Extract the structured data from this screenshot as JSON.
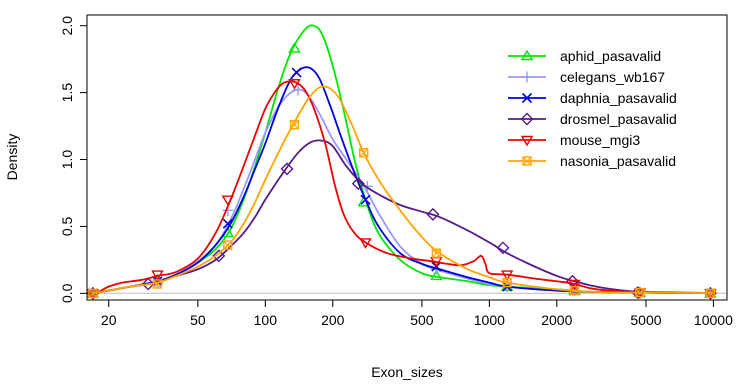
{
  "chart_data": {
    "type": "line",
    "xlabel": "Exon_sizes",
    "ylabel": "Density",
    "xscale": "log",
    "xlim": [
      16,
      11500
    ],
    "ylim": [
      -0.05,
      2.08
    ],
    "x_ticks": [
      20,
      50,
      100,
      200,
      500,
      1000,
      2000,
      5000,
      10000
    ],
    "x_tick_labels": [
      "20",
      "50",
      "100",
      "200",
      "500",
      "1000",
      "2000",
      "5000",
      "10000"
    ],
    "y_ticks": [
      0.0,
      0.5,
      1.0,
      1.5,
      2.0
    ],
    "y_tick_labels": [
      "0.0",
      "0.5",
      "1.0",
      "1.5",
      "2.0"
    ],
    "baseline": 0,
    "baseline_color": "#bebebe",
    "legend_position": "top-right",
    "series": [
      {
        "name": "aphid_pasavalid",
        "color": "#00e600",
        "marker": "triangle-up",
        "curve": [
          [
            17,
            0
          ],
          [
            20,
            0.02
          ],
          [
            25,
            0.05
          ],
          [
            33,
            0.09
          ],
          [
            40,
            0.14
          ],
          [
            50,
            0.23
          ],
          [
            60,
            0.33
          ],
          [
            70,
            0.48
          ],
          [
            80,
            0.7
          ],
          [
            90,
            0.95
          ],
          [
            100,
            1.2
          ],
          [
            115,
            1.55
          ],
          [
            130,
            1.8
          ],
          [
            150,
            1.97
          ],
          [
            165,
            2.0
          ],
          [
            180,
            1.93
          ],
          [
            200,
            1.7
          ],
          [
            225,
            1.35
          ],
          [
            250,
            1.0
          ],
          [
            280,
            0.7
          ],
          [
            320,
            0.45
          ],
          [
            400,
            0.25
          ],
          [
            500,
            0.15
          ],
          [
            600,
            0.12
          ],
          [
            800,
            0.09
          ],
          [
            1000,
            0.06
          ],
          [
            1200,
            0.05
          ],
          [
            2000,
            0.03
          ],
          [
            3000,
            0.01
          ],
          [
            5000,
            0.005
          ],
          [
            10000,
            0.002
          ]
        ],
        "points": [
          [
            17,
            0
          ],
          [
            33,
            0.1
          ],
          [
            68,
            0.45
          ],
          [
            135,
            1.83
          ],
          [
            275,
            0.68
          ],
          [
            580,
            0.13
          ],
          [
            1200,
            0.05
          ],
          [
            2400,
            0.02
          ],
          [
            4700,
            0.005
          ],
          [
            9700,
            0
          ]
        ]
      },
      {
        "name": "celegans_wb167",
        "color": "#9999ff",
        "marker": "plus",
        "curve": [
          [
            17,
            0
          ],
          [
            20,
            0.02
          ],
          [
            25,
            0.05
          ],
          [
            33,
            0.09
          ],
          [
            40,
            0.14
          ],
          [
            50,
            0.24
          ],
          [
            60,
            0.36
          ],
          [
            70,
            0.55
          ],
          [
            80,
            0.78
          ],
          [
            90,
            1.0
          ],
          [
            100,
            1.2
          ],
          [
            115,
            1.4
          ],
          [
            130,
            1.5
          ],
          [
            145,
            1.52
          ],
          [
            160,
            1.45
          ],
          [
            180,
            1.3
          ],
          [
            200,
            1.15
          ],
          [
            230,
            1.0
          ],
          [
            280,
            0.78
          ],
          [
            320,
            0.6
          ],
          [
            400,
            0.35
          ],
          [
            500,
            0.22
          ],
          [
            600,
            0.17
          ],
          [
            800,
            0.11
          ],
          [
            1000,
            0.07
          ],
          [
            1200,
            0.05
          ],
          [
            2000,
            0.02
          ],
          [
            3000,
            0.01
          ],
          [
            5000,
            0.005
          ],
          [
            10000,
            0.002
          ]
        ],
        "points": [
          [
            17,
            0
          ],
          [
            33,
            0.08
          ],
          [
            68,
            0.62
          ],
          [
            140,
            1.52
          ],
          [
            285,
            0.8
          ],
          [
            580,
            0.18
          ],
          [
            1200,
            0.05
          ],
          [
            2400,
            0.02
          ],
          [
            4700,
            0.005
          ],
          [
            9700,
            0
          ]
        ]
      },
      {
        "name": "daphnia_pasavalid",
        "color": "#0000dd",
        "marker": "cross",
        "curve": [
          [
            17,
            0
          ],
          [
            20,
            0.02
          ],
          [
            25,
            0.05
          ],
          [
            33,
            0.09
          ],
          [
            40,
            0.14
          ],
          [
            50,
            0.23
          ],
          [
            60,
            0.36
          ],
          [
            70,
            0.52
          ],
          [
            80,
            0.72
          ],
          [
            90,
            0.93
          ],
          [
            100,
            1.12
          ],
          [
            115,
            1.4
          ],
          [
            130,
            1.6
          ],
          [
            145,
            1.68
          ],
          [
            160,
            1.68
          ],
          [
            175,
            1.6
          ],
          [
            195,
            1.4
          ],
          [
            220,
            1.15
          ],
          [
            250,
            0.9
          ],
          [
            280,
            0.7
          ],
          [
            320,
            0.5
          ],
          [
            400,
            0.3
          ],
          [
            500,
            0.22
          ],
          [
            600,
            0.18
          ],
          [
            800,
            0.12
          ],
          [
            1000,
            0.08
          ],
          [
            1200,
            0.05
          ],
          [
            2000,
            0.02
          ],
          [
            3000,
            0.01
          ],
          [
            5000,
            0.005
          ],
          [
            10000,
            0.002
          ]
        ],
        "points": [
          [
            17,
            0
          ],
          [
            33,
            0.09
          ],
          [
            68,
            0.52
          ],
          [
            138,
            1.65
          ],
          [
            280,
            0.7
          ],
          [
            580,
            0.2
          ],
          [
            1200,
            0.05
          ],
          [
            2400,
            0.02
          ],
          [
            4700,
            0.005
          ],
          [
            9700,
            0
          ]
        ]
      },
      {
        "name": "drosmel_pasavalid",
        "color": "#551a8b",
        "marker": "diamond",
        "curve": [
          [
            17,
            0
          ],
          [
            20,
            0.02
          ],
          [
            25,
            0.05
          ],
          [
            30,
            0.07
          ],
          [
            40,
            0.13
          ],
          [
            50,
            0.18
          ],
          [
            60,
            0.25
          ],
          [
            70,
            0.35
          ],
          [
            80,
            0.45
          ],
          [
            90,
            0.57
          ],
          [
            100,
            0.7
          ],
          [
            120,
            0.9
          ],
          [
            140,
            1.05
          ],
          [
            160,
            1.13
          ],
          [
            180,
            1.14
          ],
          [
            200,
            1.1
          ],
          [
            230,
            0.95
          ],
          [
            270,
            0.82
          ],
          [
            320,
            0.74
          ],
          [
            400,
            0.66
          ],
          [
            500,
            0.61
          ],
          [
            600,
            0.57
          ],
          [
            800,
            0.47
          ],
          [
            1000,
            0.38
          ],
          [
            1200,
            0.3
          ],
          [
            1500,
            0.22
          ],
          [
            2000,
            0.13
          ],
          [
            2400,
            0.09
          ],
          [
            3000,
            0.05
          ],
          [
            4000,
            0.02
          ],
          [
            5000,
            0.01
          ],
          [
            10000,
            0.002
          ]
        ],
        "points": [
          [
            17,
            0
          ],
          [
            30,
            0.07
          ],
          [
            62,
            0.28
          ],
          [
            125,
            0.93
          ],
          [
            260,
            0.82
          ],
          [
            560,
            0.59
          ],
          [
            1150,
            0.34
          ],
          [
            2350,
            0.09
          ],
          [
            4600,
            0.005
          ],
          [
            9700,
            0
          ]
        ]
      },
      {
        "name": "mouse_mgi3",
        "color": "#ee0000",
        "marker": "triangle-down",
        "curve": [
          [
            17,
            0
          ],
          [
            18,
            0.01
          ],
          [
            20,
            0.05
          ],
          [
            23,
            0.08
          ],
          [
            28,
            0.1
          ],
          [
            33,
            0.13
          ],
          [
            40,
            0.16
          ],
          [
            50,
            0.26
          ],
          [
            60,
            0.45
          ],
          [
            70,
            0.7
          ],
          [
            80,
            0.95
          ],
          [
            90,
            1.18
          ],
          [
            100,
            1.38
          ],
          [
            110,
            1.5
          ],
          [
            120,
            1.57
          ],
          [
            135,
            1.58
          ],
          [
            150,
            1.52
          ],
          [
            165,
            1.38
          ],
          [
            185,
            1.12
          ],
          [
            205,
            0.8
          ],
          [
            225,
            0.58
          ],
          [
            250,
            0.45
          ],
          [
            280,
            0.38
          ],
          [
            350,
            0.3
          ],
          [
            450,
            0.26
          ],
          [
            550,
            0.24
          ],
          [
            650,
            0.22
          ],
          [
            750,
            0.21
          ],
          [
            850,
            0.24
          ],
          [
            920,
            0.28
          ],
          [
            960,
            0.22
          ],
          [
            1000,
            0.15
          ],
          [
            1200,
            0.14
          ],
          [
            1600,
            0.11
          ],
          [
            2000,
            0.09
          ],
          [
            2400,
            0.07
          ],
          [
            3000,
            0.03
          ],
          [
            5000,
            0.005
          ],
          [
            10000,
            0.002
          ]
        ],
        "points": [
          [
            17,
            0
          ],
          [
            33,
            0.14
          ],
          [
            68,
            0.7
          ],
          [
            135,
            1.57
          ],
          [
            280,
            0.38
          ],
          [
            580,
            0.24
          ],
          [
            1200,
            0.14
          ],
          [
            2400,
            0.07
          ],
          [
            4700,
            0.005
          ],
          [
            9700,
            0
          ]
        ]
      },
      {
        "name": "nasonia_pasavalid",
        "color": "#ffa500",
        "marker": "square-x",
        "curve": [
          [
            17,
            0
          ],
          [
            20,
            0.02
          ],
          [
            25,
            0.05
          ],
          [
            33,
            0.08
          ],
          [
            40,
            0.13
          ],
          [
            50,
            0.2
          ],
          [
            60,
            0.28
          ],
          [
            70,
            0.38
          ],
          [
            80,
            0.52
          ],
          [
            90,
            0.68
          ],
          [
            100,
            0.85
          ],
          [
            120,
            1.12
          ],
          [
            135,
            1.28
          ],
          [
            155,
            1.45
          ],
          [
            175,
            1.54
          ],
          [
            195,
            1.53
          ],
          [
            215,
            1.45
          ],
          [
            245,
            1.25
          ],
          [
            275,
            1.05
          ],
          [
            320,
            0.85
          ],
          [
            400,
            0.62
          ],
          [
            500,
            0.42
          ],
          [
            600,
            0.3
          ],
          [
            800,
            0.18
          ],
          [
            1000,
            0.12
          ],
          [
            1200,
            0.08
          ],
          [
            2000,
            0.03
          ],
          [
            3000,
            0.01
          ],
          [
            5000,
            0.005
          ],
          [
            10000,
            0.002
          ]
        ],
        "points": [
          [
            17,
            0
          ],
          [
            33,
            0.07
          ],
          [
            68,
            0.36
          ],
          [
            135,
            1.26
          ],
          [
            275,
            1.05
          ],
          [
            580,
            0.3
          ],
          [
            1200,
            0.08
          ],
          [
            2400,
            0.02
          ],
          [
            4700,
            0.005
          ],
          [
            9700,
            0
          ]
        ]
      }
    ]
  }
}
